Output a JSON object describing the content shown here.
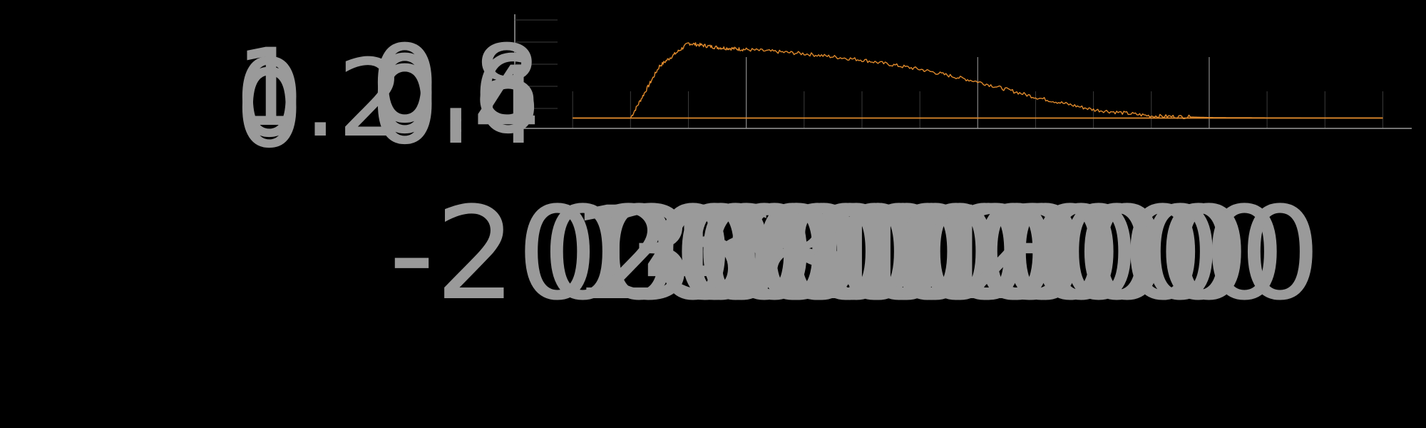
{
  "chart_data": {
    "type": "line",
    "title": "",
    "xlabel": "",
    "ylabel": "",
    "xlim": [
      -2000,
      13500
    ],
    "ylim": [
      -0.1,
      1.0
    ],
    "x_major_ticks": [
      -2000,
      2000,
      6000,
      10000
    ],
    "x_minor_ticks": [
      -1000,
      0,
      1000,
      3000,
      4000,
      5000,
      7000,
      8000,
      9000,
      11000,
      12000,
      13000
    ],
    "x_tick_labels": [
      "-2000",
      "0",
      "1000",
      "2000",
      "3000",
      "4000",
      "5000",
      "6000",
      "7000",
      "8000",
      "9000",
      "10000",
      "11000",
      "12000",
      "13000"
    ],
    "y_tick_labels": [
      "0",
      "0.2",
      "0.4",
      "0.6",
      "0.8",
      "1"
    ],
    "grid": "vertical",
    "legend": "none",
    "colors": {
      "background": "#000000",
      "axis": "#9a9a9a",
      "grid_major": "#8a8a8a",
      "grid_minor": "#3c3c3c",
      "series": "#e08a2c"
    },
    "series": [
      {
        "x": [
          -1000,
          0,
          500,
          1000,
          1500,
          2000,
          3000,
          4000,
          5000,
          6000,
          7000,
          8000,
          9000,
          10000,
          11000,
          12000,
          13000
        ],
        "values": [
          0,
          0,
          0.5,
          0.72,
          0.68,
          0.66,
          0.62,
          0.56,
          0.47,
          0.35,
          0.2,
          0.08,
          0.02,
          0.005,
          0.002,
          0.001,
          0.001
        ]
      },
      {
        "x": [
          -1000,
          13000
        ],
        "values": [
          0,
          0
        ]
      }
    ]
  }
}
